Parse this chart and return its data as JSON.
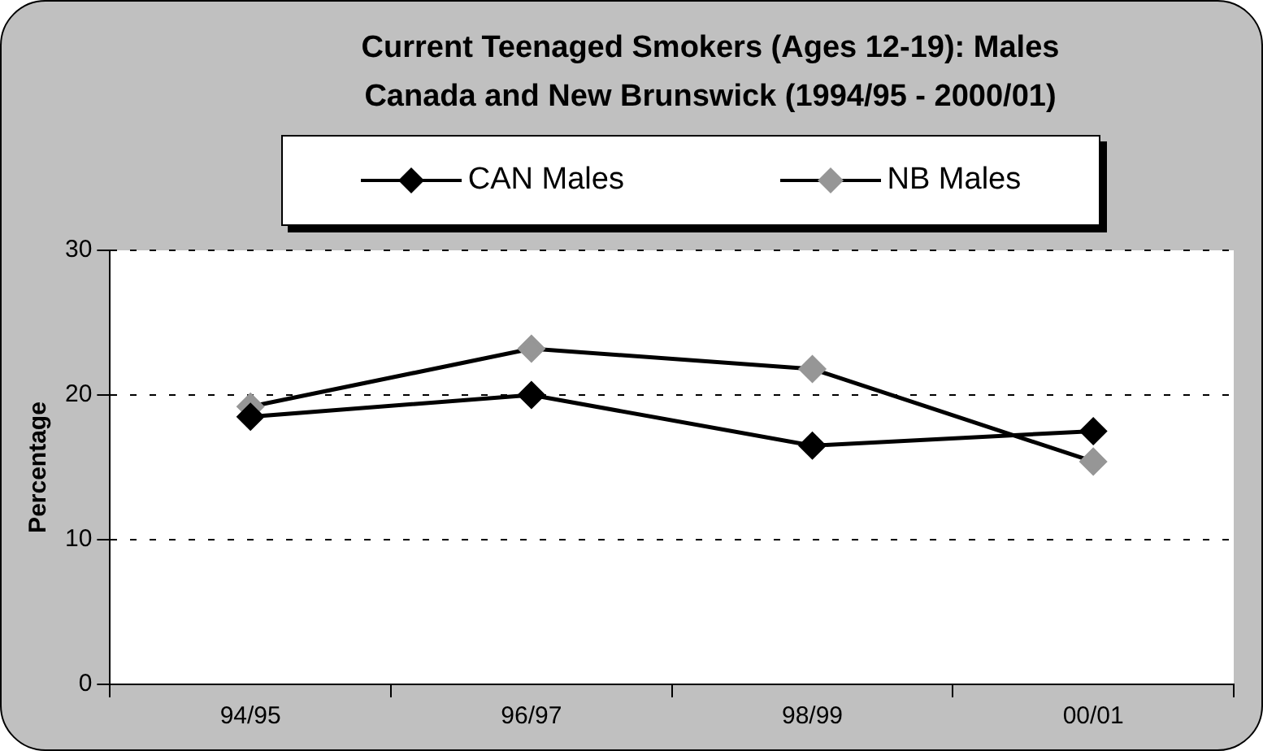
{
  "chart_data": {
    "type": "line",
    "title": "Current Teenaged Smokers (Ages 12-19): Males",
    "subtitle": "Canada and New Brunswick (1994/95 - 2000/01)",
    "ylabel": "Percentage",
    "categories": [
      "94/95",
      "96/97",
      "98/99",
      "00/01"
    ],
    "series": [
      {
        "name": "CAN Males",
        "color": "#000000",
        "values": [
          18.5,
          20.0,
          16.5,
          17.5
        ]
      },
      {
        "name": "NB Males",
        "color": "#969696",
        "values": [
          19.2,
          23.2,
          21.8,
          15.4
        ]
      }
    ],
    "ylim": [
      0,
      30
    ],
    "yticks": [
      0,
      10,
      20,
      30
    ],
    "grid": "y",
    "legend": "top",
    "marker": "diamond",
    "line_style": "solid"
  }
}
